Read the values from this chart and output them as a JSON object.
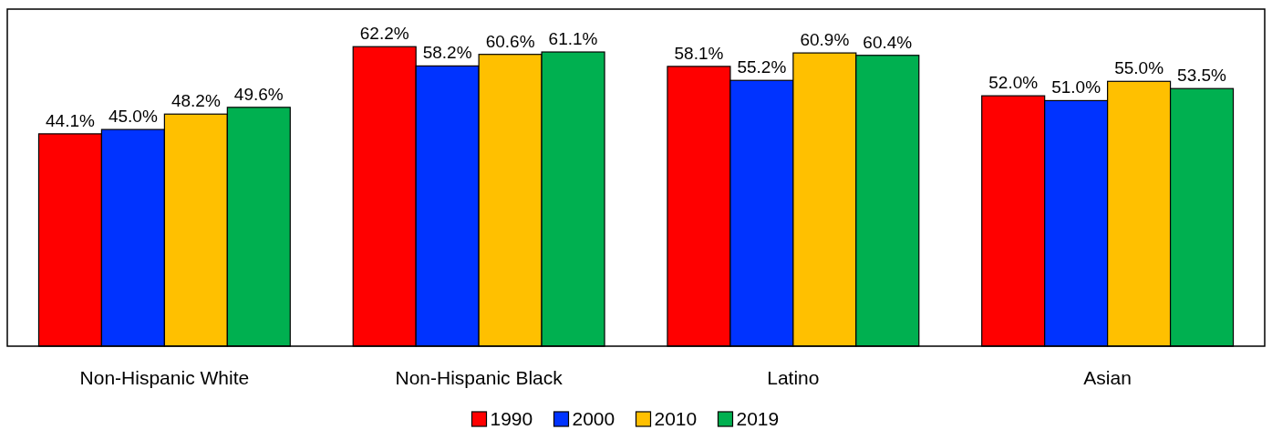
{
  "chart_data": {
    "type": "bar",
    "categories": [
      "Non-Hispanic White",
      "Non-Hispanic Black",
      "Latino",
      "Asian"
    ],
    "series": [
      {
        "name": "1990",
        "color": "#ff0000",
        "values": [
          44.1,
          62.2,
          58.1,
          52.0
        ],
        "value_labels": [
          "44.1%",
          "62.2%",
          "58.1%",
          "52.0%"
        ]
      },
      {
        "name": "2000",
        "color": "#0033ff",
        "values": [
          45.0,
          58.2,
          55.2,
          51.0
        ],
        "value_labels": [
          "45.0%",
          "58.2%",
          "55.2%",
          "51.0%"
        ]
      },
      {
        "name": "2010",
        "color": "#ffc000",
        "values": [
          48.2,
          60.6,
          60.9,
          55.0
        ],
        "value_labels": [
          "48.2%",
          "60.6%",
          "60.9%",
          "55.0%"
        ]
      },
      {
        "name": "2019",
        "color": "#00b050",
        "values": [
          49.6,
          61.1,
          60.4,
          53.5
        ],
        "value_labels": [
          "49.6%",
          "61.1%",
          "60.4%",
          "53.5%"
        ]
      }
    ],
    "ylim": [
      0,
      70
    ],
    "tick_labels": "x",
    "legend": "bottom"
  }
}
